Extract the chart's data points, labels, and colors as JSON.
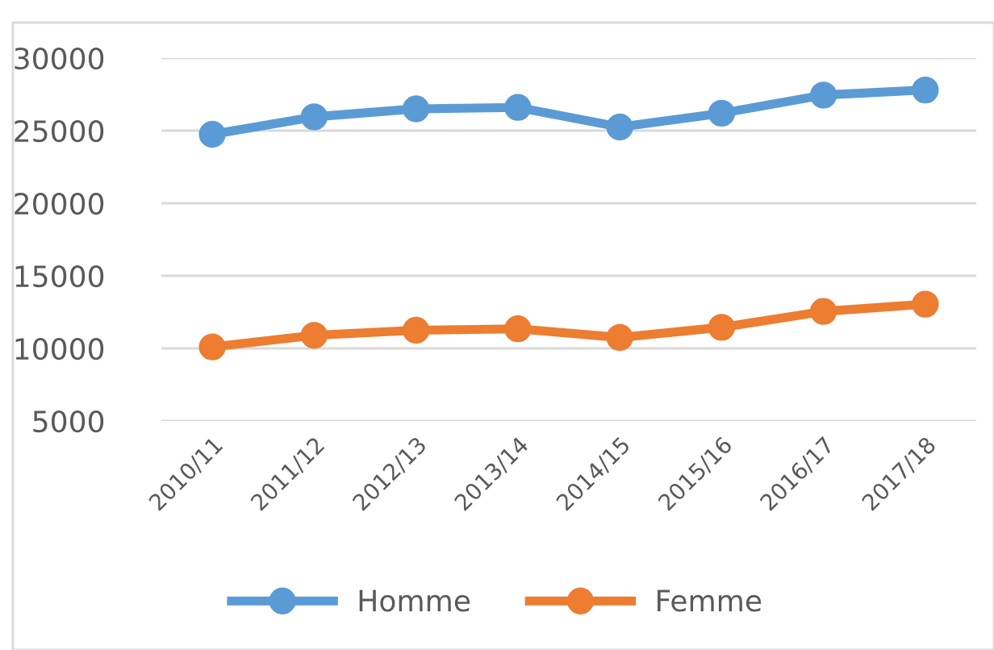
{
  "chart_data": {
    "type": "line",
    "categories": [
      "2010/11",
      "2011/12",
      "2012/13",
      "2013/14",
      "2014/15",
      "2015/16",
      "2016/17",
      "2017/18"
    ],
    "series": [
      {
        "name": "Homme",
        "color": "#5b9bd5",
        "values": [
          24750,
          25950,
          26500,
          26600,
          25250,
          26200,
          27450,
          27800
        ]
      },
      {
        "name": "Femme",
        "color": "#ed7d31",
        "values": [
          10100,
          10900,
          11250,
          11350,
          10750,
          11450,
          12550,
          13050
        ]
      }
    ],
    "ylim": [
      5000,
      30000
    ],
    "yticks": [
      5000,
      10000,
      15000,
      20000,
      25000,
      30000
    ],
    "grid": "y",
    "legend": "bottom",
    "marker": "circle",
    "line_style": "solid"
  }
}
